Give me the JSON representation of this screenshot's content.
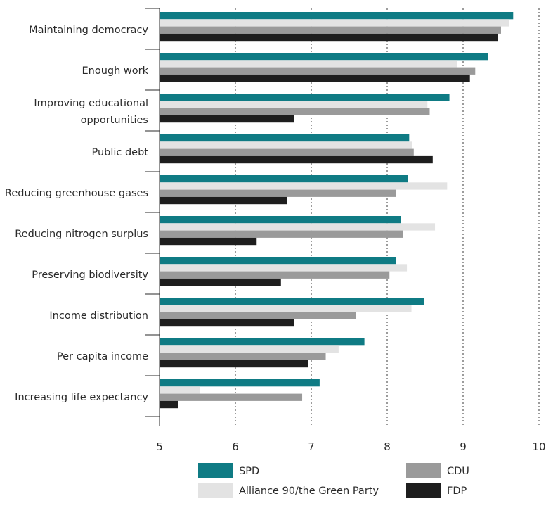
{
  "chart_data": {
    "type": "bar",
    "orientation": "horizontal",
    "categories": [
      [
        "Maintaining democracy"
      ],
      [
        "Enough work"
      ],
      [
        "Improving educational",
        "opportunities"
      ],
      [
        "Public debt"
      ],
      [
        "Reducing greenhouse gases"
      ],
      [
        "Reducing nitrogen surplus"
      ],
      [
        "Preserving biodiversity"
      ],
      [
        "Income distribution"
      ],
      [
        "Per capita income"
      ],
      [
        "Increasing life expectancy"
      ]
    ],
    "series": [
      {
        "name": "SPD",
        "color": "#0f7b84",
        "values": [
          9.66,
          9.33,
          8.82,
          8.29,
          8.27,
          8.18,
          8.12,
          8.49,
          7.7,
          7.11
        ]
      },
      {
        "name": "Alliance 90/the Green Party",
        "color": "#e3e3e3",
        "values": [
          9.61,
          8.92,
          8.53,
          8.33,
          8.79,
          8.63,
          8.26,
          8.32,
          7.36,
          5.53
        ]
      },
      {
        "name": "CDU",
        "color": "#9a9a9a",
        "values": [
          9.5,
          9.16,
          8.56,
          8.35,
          8.12,
          8.21,
          8.03,
          7.59,
          7.19,
          6.88
        ]
      },
      {
        "name": "FDP",
        "color": "#1e1e1e",
        "values": [
          9.46,
          9.09,
          6.77,
          8.6,
          6.68,
          6.28,
          6.6,
          6.77,
          6.96,
          5.25
        ]
      }
    ],
    "xlim": [
      5,
      10
    ],
    "xticks": [
      "5",
      "6",
      "7",
      "8",
      "9",
      "10"
    ],
    "grid": "vertical dashed",
    "legend_position": "bottom"
  }
}
